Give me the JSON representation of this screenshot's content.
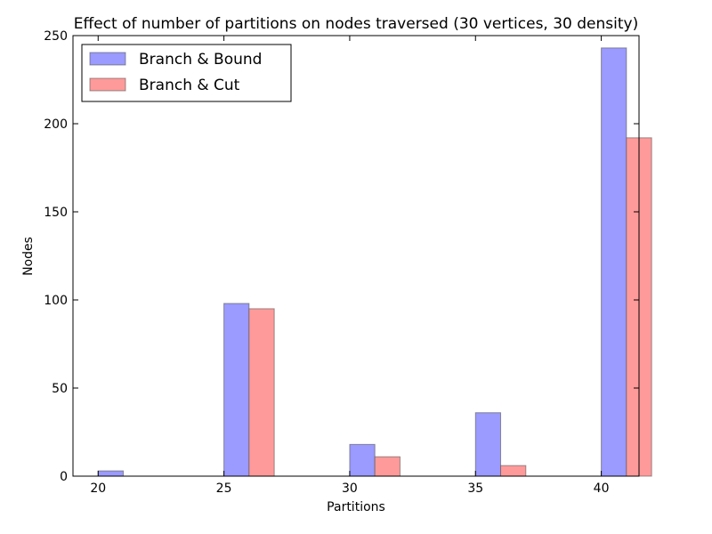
{
  "chart_data": {
    "type": "bar",
    "title": "Effect of number of partitions on nodes traversed (30 vertices, 30 density)",
    "xlabel": "Partitions",
    "ylabel": "Nodes",
    "categories": [
      "20",
      "25",
      "30",
      "35",
      "40"
    ],
    "x": [
      20,
      25,
      30,
      35,
      40
    ],
    "xlim": [
      19,
      41.5
    ],
    "ylim": [
      0,
      250
    ],
    "yticks": [
      0,
      50,
      100,
      150,
      200,
      250
    ],
    "grid": false,
    "legend_position": "top-left",
    "series": [
      {
        "name": "Branch & Bound",
        "values": [
          3,
          98,
          18,
          36,
          243
        ],
        "color": "#9a9aff"
      },
      {
        "name": "Branch & Cut",
        "values": [
          0,
          95,
          11,
          6,
          192
        ],
        "color": "#ff9a9a"
      }
    ]
  }
}
